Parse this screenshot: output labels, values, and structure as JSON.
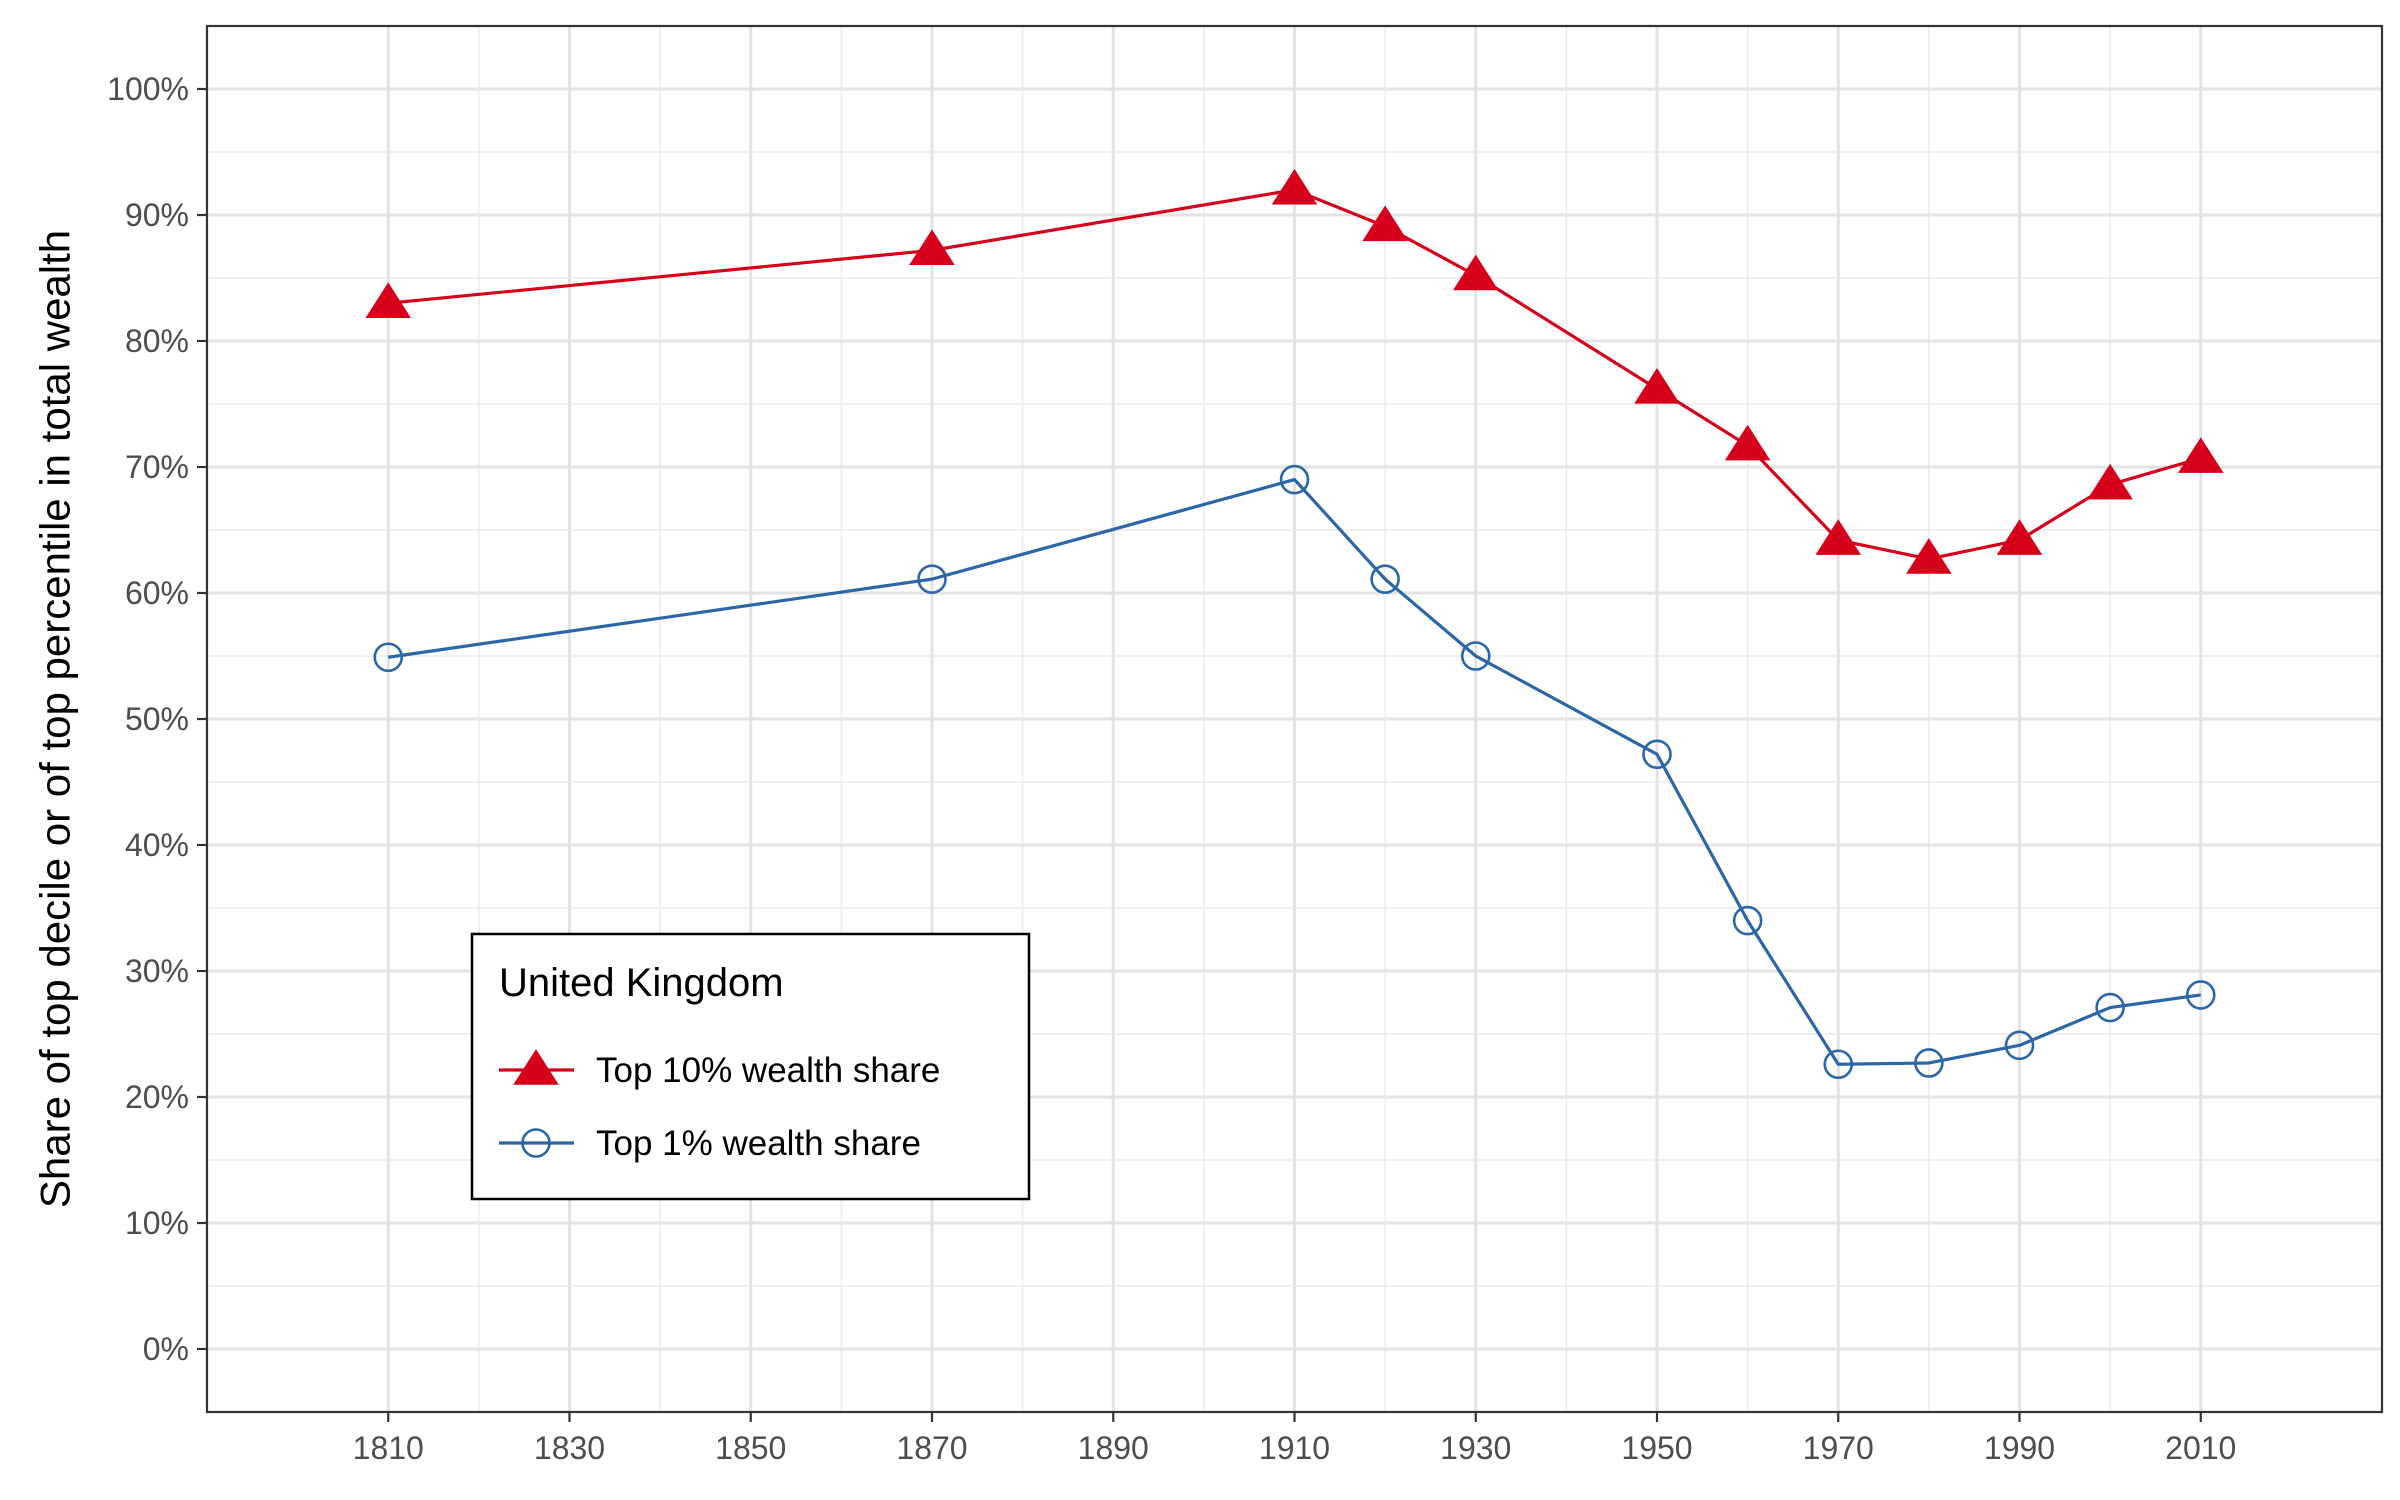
{
  "chart_data": {
    "type": "line",
    "title": "",
    "xlabel": "",
    "ylabel": "Share of top decile or of top percentile in total wealth",
    "x_ticks": [
      1810,
      1830,
      1850,
      1870,
      1890,
      1910,
      1930,
      1950,
      1970,
      1990,
      2010
    ],
    "xlim": [
      1790,
      2030
    ],
    "y_ticks": [
      0,
      10,
      20,
      30,
      40,
      50,
      60,
      70,
      80,
      90,
      100
    ],
    "y_tick_labels": [
      "0%",
      "10%",
      "20%",
      "30%",
      "40%",
      "50%",
      "60%",
      "70%",
      "80%",
      "90%",
      "100%"
    ],
    "ylim": [
      -5,
      105
    ],
    "grid": true,
    "legend": {
      "title": "United Kingdom",
      "placement": "bottom-left"
    },
    "series": [
      {
        "name": "Top 10% wealth share",
        "color": "#d7001a",
        "marker": "filled-triangle",
        "x": [
          1810,
          1870,
          1910,
          1920,
          1930,
          1950,
          1960,
          1970,
          1980,
          1990,
          2000,
          2010
        ],
        "values": [
          83,
          87.2,
          92,
          89.1,
          85.2,
          76.2,
          71.7,
          64.2,
          62.7,
          64.2,
          68.6,
          70.7
        ]
      },
      {
        "name": "Top 1% wealth share",
        "color": "#2a66a8",
        "marker": "open-circle",
        "x": [
          1810,
          1870,
          1910,
          1920,
          1930,
          1950,
          1960,
          1970,
          1980,
          1990,
          2000,
          2010
        ],
        "values": [
          54.9,
          61.1,
          69,
          61.1,
          55,
          47.2,
          34,
          22.6,
          22.7,
          24.1,
          27.1,
          28.1
        ]
      }
    ]
  }
}
